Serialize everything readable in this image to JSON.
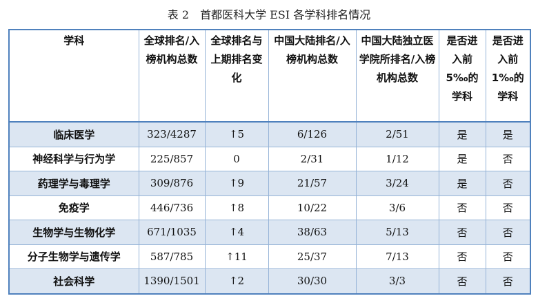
{
  "title": "表 2　首都医科大学 ESI 各学科排名情况",
  "table": {
    "header": [
      "学科",
      "全球排名/入榜机构总数",
      "全球排名与上期排名变化",
      "中国大陆排名/入榜机构总数",
      "中国大陆独立医学院所排名/入榜机构总数",
      "是否进入前 5‰的学科",
      "是否进入前 1‰的学科"
    ],
    "rows": [
      [
        "临床医学",
        "323/4287",
        "↑5",
        "6/126",
        "2/51",
        "是",
        "是"
      ],
      [
        "神经科学与行为学",
        "225/857",
        "0",
        "2/31",
        "1/12",
        "是",
        "否"
      ],
      [
        "药理学与毒理学",
        "309/876",
        "↑9",
        "21/57",
        "3/24",
        "是",
        "否"
      ],
      [
        "免疫学",
        "446/736",
        "↑8",
        "10/22",
        "3/6",
        "否",
        "否"
      ],
      [
        "生物学与生物化学",
        "671/1035",
        "↑4",
        "38/63",
        "5/13",
        "否",
        "否"
      ],
      [
        "分子生物学与遗传学",
        "587/785",
        "↑11",
        "25/37",
        "7/13",
        "否",
        "否"
      ],
      [
        "社会科学",
        "1390/1501",
        "↑2",
        "30/30",
        "3/3",
        "否",
        "否"
      ]
    ]
  }
}
